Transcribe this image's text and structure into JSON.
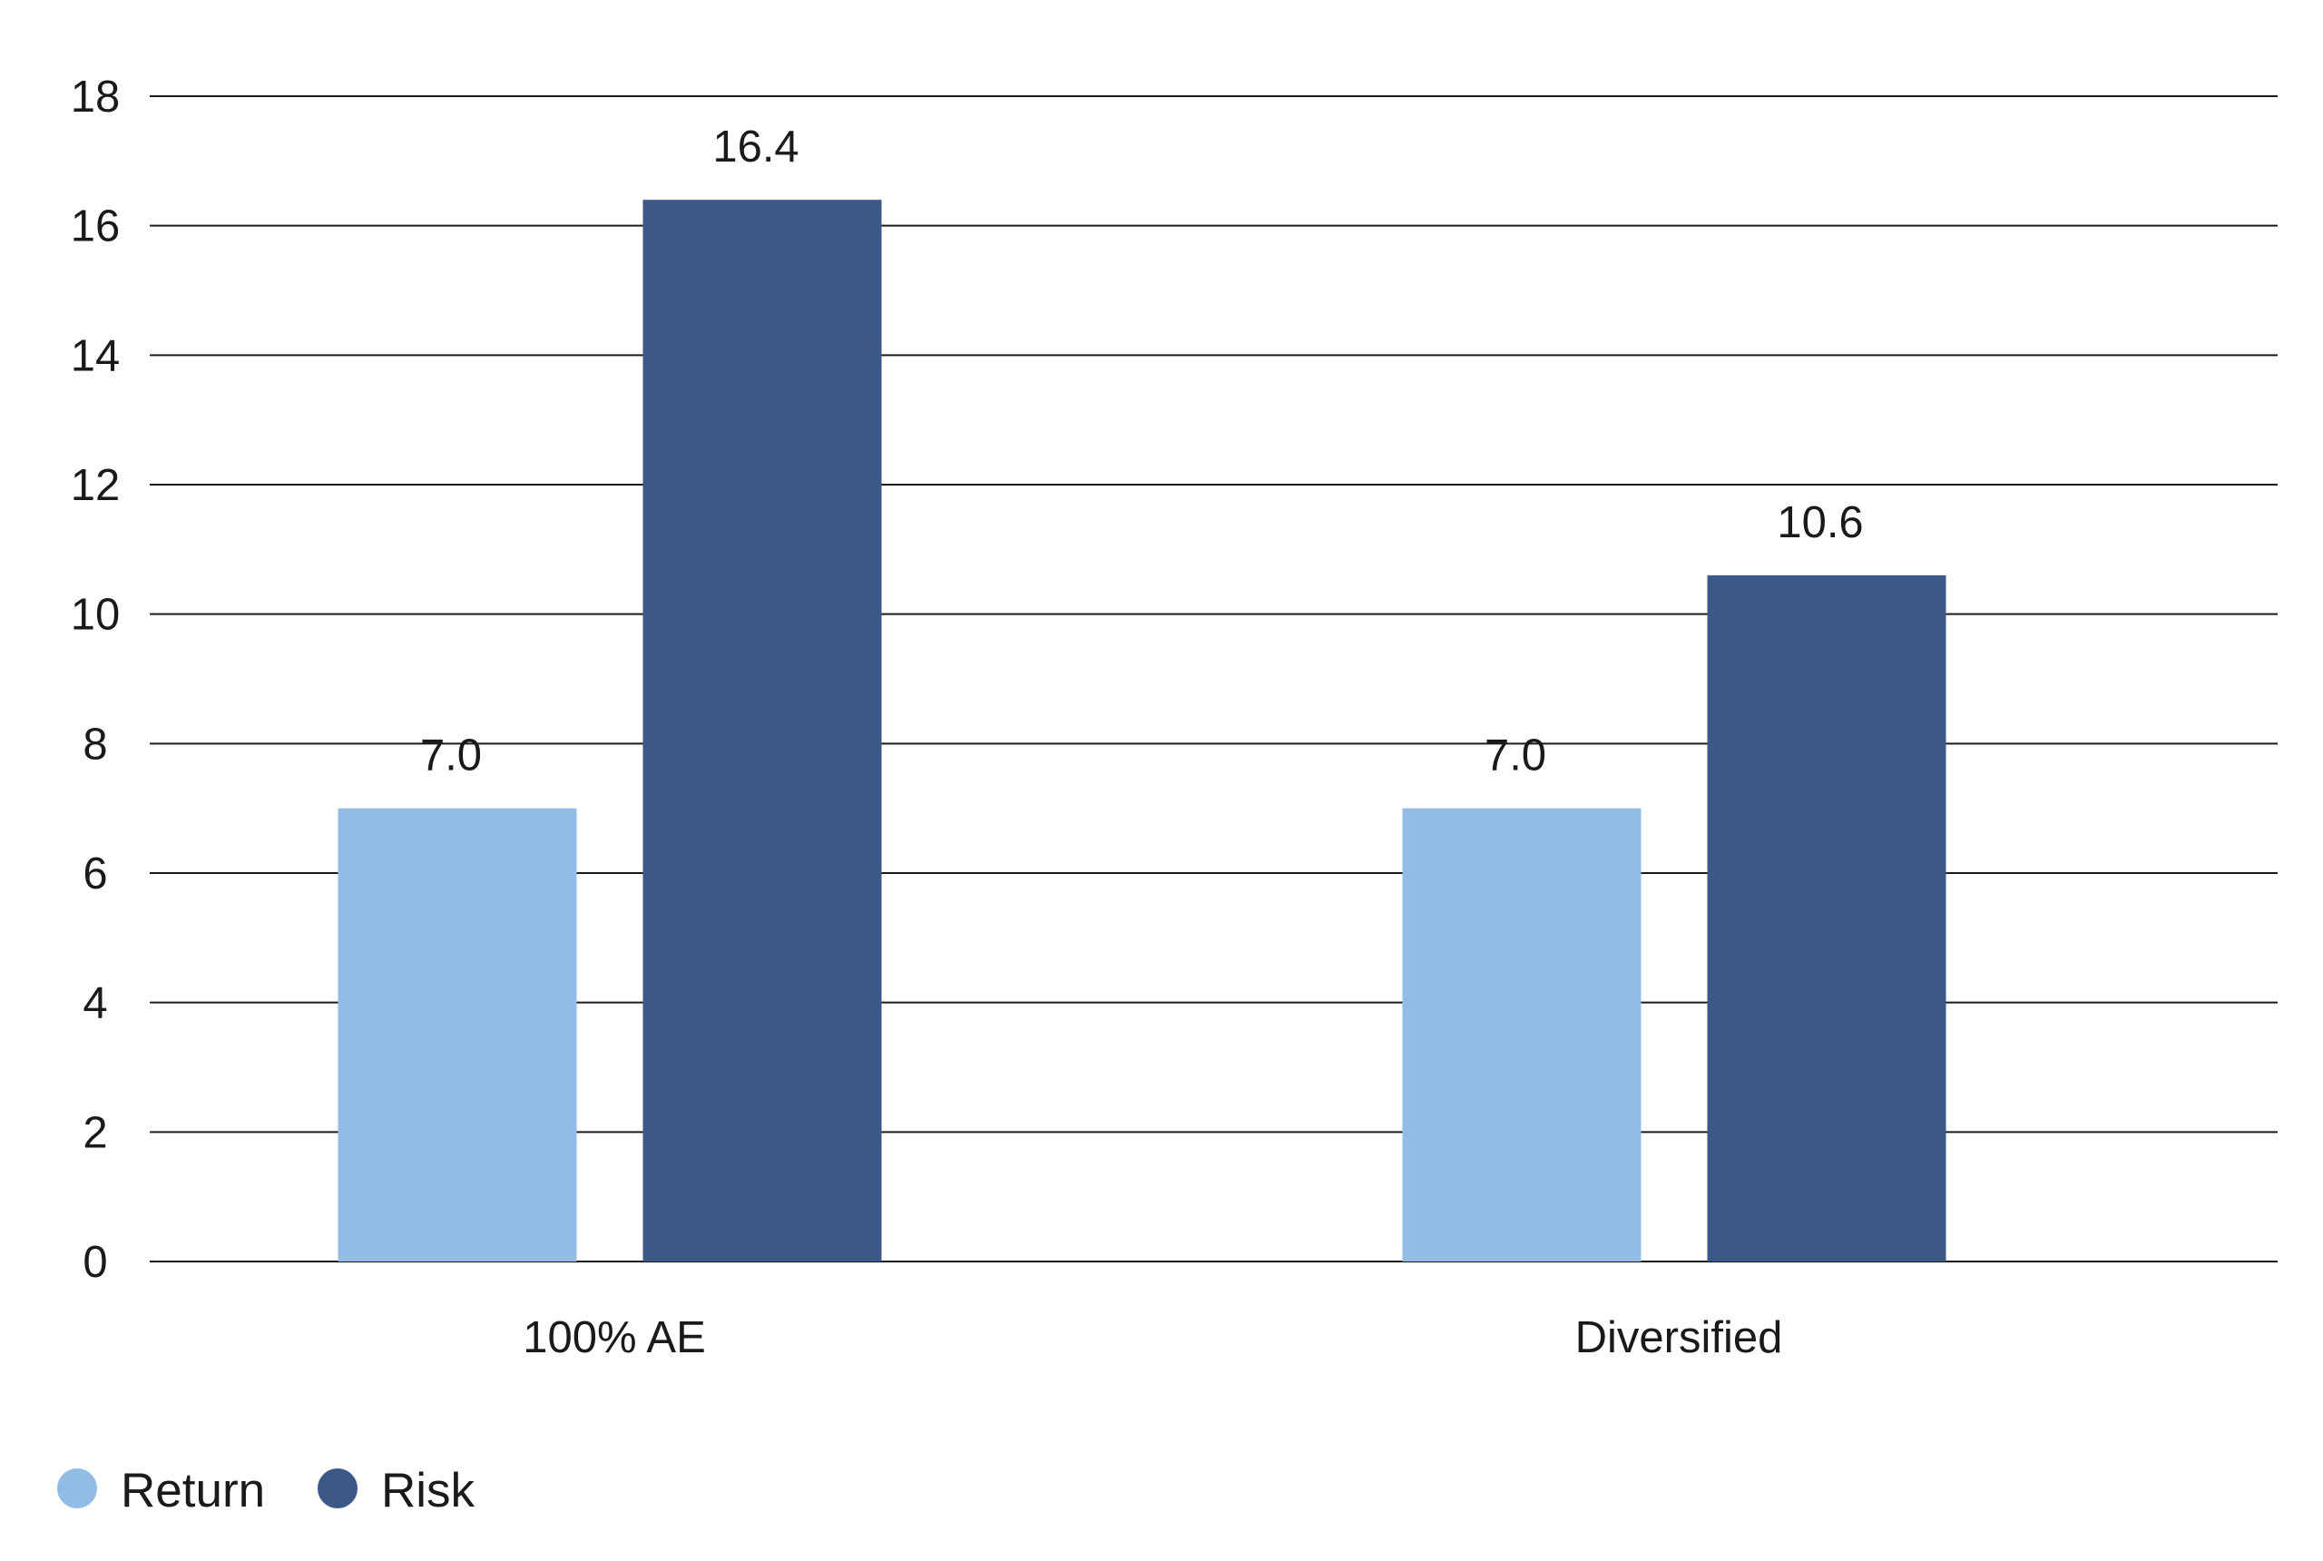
{
  "chart_data": {
    "type": "bar",
    "categories": [
      "100% AE",
      "Diversified"
    ],
    "series": [
      {
        "name": "Return",
        "values": [
          7.0,
          7.0
        ],
        "data_labels": [
          "7.0",
          "7.0"
        ],
        "color": "#92bce3"
      },
      {
        "name": "Risk",
        "values": [
          16.4,
          10.6
        ],
        "data_labels": [
          "16.4",
          "10.6"
        ],
        "color": "#3c5887"
      }
    ],
    "ylim": [
      0,
      18
    ],
    "yticks": [
      0,
      2,
      4,
      6,
      8,
      10,
      12,
      14,
      16,
      18
    ],
    "ytick_labels": [
      "0",
      "2",
      "4",
      "6",
      "8",
      "10",
      "12",
      "14",
      "16",
      "18"
    ],
    "grid": true,
    "legend_position": "bottom-left"
  }
}
